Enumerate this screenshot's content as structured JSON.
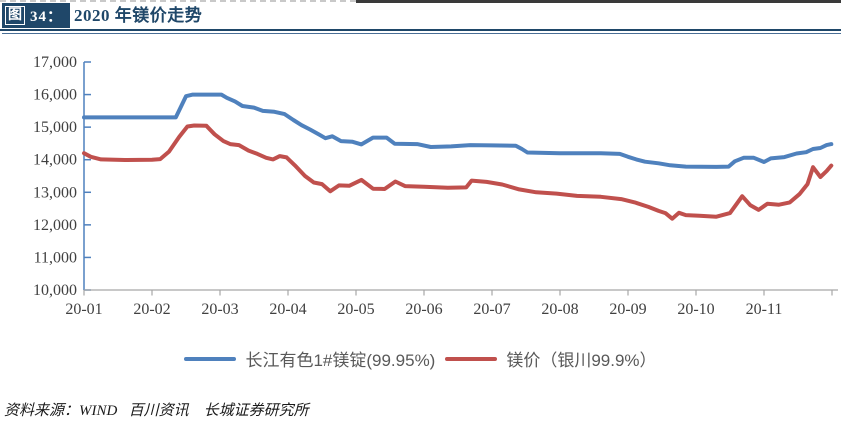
{
  "header": {
    "tag_glyph": "图",
    "tag_number": "34：",
    "title": "2020 年镁价走势"
  },
  "source": {
    "text": "资料来源：WIND   百川资讯    长城证券研究所"
  },
  "colors": {
    "navy": "#1F4769",
    "series_blue": "#4F81BD",
    "series_red": "#C0504D",
    "axis_y": "#4F81BD",
    "axis_x": "#A6A6A6",
    "tick_text": "#404040",
    "legend_text": "#595959"
  },
  "chart_data": {
    "type": "line",
    "title": "2020 年镁价走势",
    "ylabel": "",
    "xlabel": "",
    "ylim": [
      10000,
      17000
    ],
    "ytick_step": 1000,
    "ytick_labels": [
      "17,000",
      "16,000",
      "15,000",
      "14,000",
      "13,000",
      "12,000",
      "11,000",
      "10,000"
    ],
    "x_tick_labels": [
      "20-01",
      "20-02",
      "20-03",
      "20-04",
      "20-05",
      "20-06",
      "20-07",
      "20-08",
      "20-09",
      "20-10",
      "20-11"
    ],
    "x_tick_months": [
      1,
      2,
      3,
      4,
      5,
      6,
      7,
      8,
      9,
      10,
      11,
      12
    ],
    "grid": false,
    "legend_position": "bottom",
    "series": [
      {
        "name": "长江有色1#镁锭(99.95%)",
        "color": "#4F81BD",
        "points": [
          [
            1.0,
            15300
          ],
          [
            1.5,
            15300
          ],
          [
            2.0,
            15300
          ],
          [
            2.35,
            15300
          ],
          [
            2.5,
            15950
          ],
          [
            2.6,
            16000
          ],
          [
            3.02,
            16000
          ],
          [
            3.1,
            15900
          ],
          [
            3.22,
            15790
          ],
          [
            3.33,
            15650
          ],
          [
            3.5,
            15600
          ],
          [
            3.63,
            15500
          ],
          [
            3.8,
            15470
          ],
          [
            3.95,
            15400
          ],
          [
            4.08,
            15220
          ],
          [
            4.2,
            15060
          ],
          [
            4.32,
            14930
          ],
          [
            4.45,
            14780
          ],
          [
            4.55,
            14660
          ],
          [
            4.65,
            14720
          ],
          [
            4.78,
            14570
          ],
          [
            4.95,
            14550
          ],
          [
            5.08,
            14470
          ],
          [
            5.25,
            14680
          ],
          [
            5.45,
            14680
          ],
          [
            5.57,
            14490
          ],
          [
            5.9,
            14480
          ],
          [
            6.1,
            14390
          ],
          [
            6.4,
            14410
          ],
          [
            6.68,
            14450
          ],
          [
            7.0,
            14440
          ],
          [
            7.35,
            14430
          ],
          [
            7.44,
            14330
          ],
          [
            7.52,
            14220
          ],
          [
            8.0,
            14200
          ],
          [
            8.6,
            14200
          ],
          [
            8.88,
            14180
          ],
          [
            9.0,
            14090
          ],
          [
            9.12,
            14010
          ],
          [
            9.25,
            13940
          ],
          [
            9.45,
            13890
          ],
          [
            9.62,
            13830
          ],
          [
            9.85,
            13790
          ],
          [
            10.3,
            13780
          ],
          [
            10.48,
            13790
          ],
          [
            10.57,
            13950
          ],
          [
            10.7,
            14060
          ],
          [
            10.85,
            14060
          ],
          [
            11.0,
            13930
          ],
          [
            11.1,
            14040
          ],
          [
            11.3,
            14080
          ],
          [
            11.48,
            14190
          ],
          [
            11.62,
            14230
          ],
          [
            11.72,
            14330
          ],
          [
            11.83,
            14360
          ],
          [
            11.92,
            14450
          ],
          [
            11.99,
            14480
          ]
        ]
      },
      {
        "name": "镁价（银川99.9%）",
        "color": "#C0504D",
        "points": [
          [
            1.0,
            14200
          ],
          [
            1.1,
            14090
          ],
          [
            1.25,
            14010
          ],
          [
            1.6,
            13990
          ],
          [
            2.0,
            14000
          ],
          [
            2.12,
            14020
          ],
          [
            2.25,
            14250
          ],
          [
            2.4,
            14700
          ],
          [
            2.52,
            15020
          ],
          [
            2.62,
            15050
          ],
          [
            2.8,
            15040
          ],
          [
            2.92,
            14780
          ],
          [
            3.05,
            14570
          ],
          [
            3.15,
            14480
          ],
          [
            3.28,
            14450
          ],
          [
            3.42,
            14280
          ],
          [
            3.55,
            14180
          ],
          [
            3.68,
            14060
          ],
          [
            3.78,
            14010
          ],
          [
            3.88,
            14110
          ],
          [
            3.98,
            14070
          ],
          [
            4.1,
            13830
          ],
          [
            4.25,
            13500
          ],
          [
            4.38,
            13300
          ],
          [
            4.5,
            13250
          ],
          [
            4.62,
            13030
          ],
          [
            4.75,
            13210
          ],
          [
            4.9,
            13200
          ],
          [
            5.08,
            13380
          ],
          [
            5.25,
            13110
          ],
          [
            5.42,
            13100
          ],
          [
            5.58,
            13330
          ],
          [
            5.72,
            13190
          ],
          [
            6.0,
            13170
          ],
          [
            6.35,
            13140
          ],
          [
            6.62,
            13150
          ],
          [
            6.7,
            13360
          ],
          [
            6.92,
            13320
          ],
          [
            7.15,
            13240
          ],
          [
            7.4,
            13090
          ],
          [
            7.65,
            13000
          ],
          [
            7.95,
            12960
          ],
          [
            8.25,
            12890
          ],
          [
            8.6,
            12860
          ],
          [
            8.9,
            12790
          ],
          [
            9.1,
            12690
          ],
          [
            9.3,
            12550
          ],
          [
            9.45,
            12430
          ],
          [
            9.55,
            12360
          ],
          [
            9.65,
            12190
          ],
          [
            9.75,
            12370
          ],
          [
            9.85,
            12300
          ],
          [
            10.05,
            12280
          ],
          [
            10.3,
            12250
          ],
          [
            10.5,
            12360
          ],
          [
            10.6,
            12650
          ],
          [
            10.68,
            12880
          ],
          [
            10.8,
            12600
          ],
          [
            10.92,
            12460
          ],
          [
            11.05,
            12650
          ],
          [
            11.22,
            12620
          ],
          [
            11.38,
            12690
          ],
          [
            11.52,
            12940
          ],
          [
            11.64,
            13250
          ],
          [
            11.72,
            13770
          ],
          [
            11.83,
            13470
          ],
          [
            11.92,
            13650
          ],
          [
            11.99,
            13820
          ]
        ]
      }
    ]
  }
}
